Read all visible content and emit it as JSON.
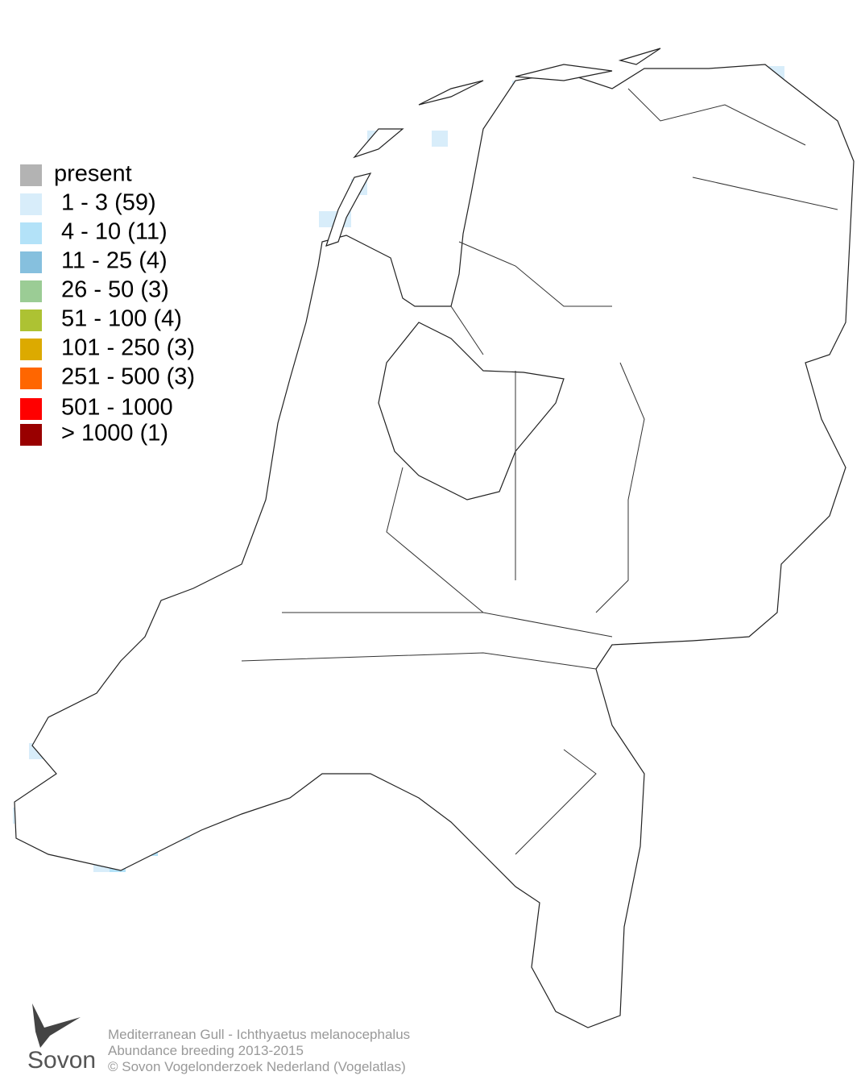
{
  "legend": [
    {
      "label": "present",
      "color": "#b3b3b3"
    },
    {
      "label": "1 - 3 (59)",
      "color": "#d8edfa"
    },
    {
      "label": "4 - 10 (11)",
      "color": "#b3e2f8"
    },
    {
      "label": "11 - 25 (4)",
      "color": "#86c0de"
    },
    {
      "label": "26 - 50 (3)",
      "color": "#9bcc95"
    },
    {
      "label": "51 - 100 (4)",
      "color": "#adc233"
    },
    {
      "label": "101 - 250 (3)",
      "color": "#dcaa00"
    },
    {
      "label": "251 - 500 (3)",
      "color": "#ff6600"
    },
    {
      "label": "501 - 1000",
      "color": "#ff0000"
    },
    {
      "label": "> 1000 (1)",
      "color": "#990000"
    }
  ],
  "caption": {
    "line1": "Mediterranean Gull - Ichthyaetus melanocephalus",
    "line2": "Abundance breeding 2013-2015",
    "line3": "© Sovon Vogelonderzoek Nederland (Vogelatlas)"
  },
  "logo": "Sovon"
}
